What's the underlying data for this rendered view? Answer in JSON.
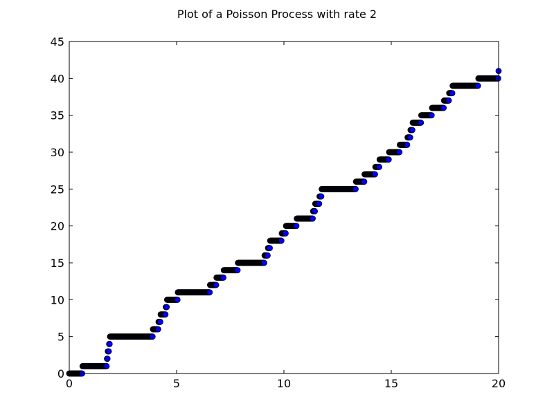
{
  "chart_data": {
    "type": "scatter",
    "title": "Plot of a Poisson Process with rate 2",
    "xlabel": "",
    "ylabel": "",
    "xlim": [
      0,
      20
    ],
    "ylim": [
      0,
      45
    ],
    "x_ticks": [
      0,
      5,
      10,
      15,
      20
    ],
    "y_ticks": [
      0,
      5,
      10,
      15,
      20,
      25,
      30,
      35,
      40,
      45
    ],
    "grid": false,
    "marker_color": "#0000ff",
    "marker_edge_color": "#000000",
    "sample_step": 0.02,
    "arrival_times": [
      0.62,
      1.75,
      1.8,
      1.85,
      1.9,
      3.9,
      4.15,
      4.25,
      4.5,
      4.55,
      5.05,
      6.55,
      6.85,
      7.2,
      7.85,
      9.1,
      9.25,
      9.35,
      9.9,
      10.1,
      10.6,
      11.35,
      11.45,
      11.65,
      11.75,
      13.35,
      13.75,
      14.25,
      14.45,
      14.9,
      15.4,
      15.75,
      15.9,
      16.0,
      16.4,
      16.9,
      17.45,
      17.7,
      17.85,
      19.05,
      20.0
    ]
  }
}
